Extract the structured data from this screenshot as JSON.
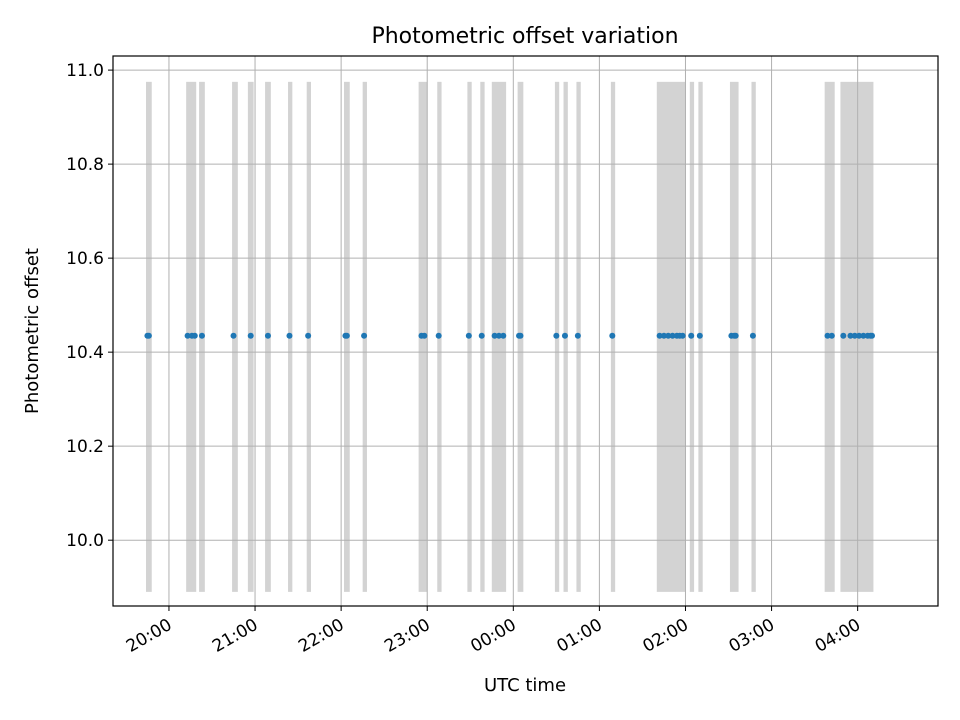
{
  "chart_data": {
    "type": "scatter",
    "title": "Photometric offset variation",
    "xlabel": "UTC time",
    "ylabel": "Photometric offset",
    "x_tick_labels": [
      "20:00",
      "21:00",
      "22:00",
      "23:00",
      "00:00",
      "01:00",
      "02:00",
      "03:00",
      "04:00"
    ],
    "y_tick_labels": [
      "10.0",
      "10.2",
      "10.4",
      "10.6",
      "10.8",
      "11.0"
    ],
    "xlim": [
      "19:21",
      "04:56"
    ],
    "ylim": [
      9.86,
      11.03
    ],
    "x_ticks": [
      "20:00",
      "21:00",
      "22:00",
      "23:00",
      "00:00",
      "01:00",
      "02:00",
      "03:00",
      "04:00"
    ],
    "y_ticks": [
      10.0,
      10.2,
      10.4,
      10.6,
      10.8,
      11.0
    ],
    "grid": true,
    "observation_window": [
      9.89,
      10.975
    ],
    "colors": {
      "points": "#1f77b4",
      "bands": "#d3d3d3",
      "grid": "#b0b0b0"
    },
    "points": [
      {
        "x": "19:45",
        "y": 10.435
      },
      {
        "x": "19:46",
        "y": 10.435
      },
      {
        "x": "20:13",
        "y": 10.435
      },
      {
        "x": "20:16",
        "y": 10.435
      },
      {
        "x": "20:18",
        "y": 10.435
      },
      {
        "x": "20:23",
        "y": 10.435
      },
      {
        "x": "20:45",
        "y": 10.435
      },
      {
        "x": "20:57",
        "y": 10.435
      },
      {
        "x": "21:09",
        "y": 10.435
      },
      {
        "x": "21:24",
        "y": 10.435
      },
      {
        "x": "21:37",
        "y": 10.435
      },
      {
        "x": "22:03",
        "y": 10.435
      },
      {
        "x": "22:04",
        "y": 10.435
      },
      {
        "x": "22:16",
        "y": 10.435
      },
      {
        "x": "22:56",
        "y": 10.435
      },
      {
        "x": "22:58",
        "y": 10.435
      },
      {
        "x": "23:08",
        "y": 10.435
      },
      {
        "x": "23:29",
        "y": 10.435
      },
      {
        "x": "23:38",
        "y": 10.435
      },
      {
        "x": "23:47",
        "y": 10.435
      },
      {
        "x": "23:50",
        "y": 10.435
      },
      {
        "x": "23:53",
        "y": 10.435
      },
      {
        "x": "00:04",
        "y": 10.435
      },
      {
        "x": "00:05",
        "y": 10.435
      },
      {
        "x": "00:30",
        "y": 10.435
      },
      {
        "x": "00:36",
        "y": 10.435
      },
      {
        "x": "00:45",
        "y": 10.435
      },
      {
        "x": "01:09",
        "y": 10.435
      },
      {
        "x": "01:42",
        "y": 10.435
      },
      {
        "x": "01:45",
        "y": 10.435
      },
      {
        "x": "01:48",
        "y": 10.435
      },
      {
        "x": "01:51",
        "y": 10.435
      },
      {
        "x": "01:54",
        "y": 10.435
      },
      {
        "x": "01:56",
        "y": 10.435
      },
      {
        "x": "01:58",
        "y": 10.435
      },
      {
        "x": "02:04",
        "y": 10.435
      },
      {
        "x": "02:10",
        "y": 10.435
      },
      {
        "x": "02:32",
        "y": 10.435
      },
      {
        "x": "02:34",
        "y": 10.435
      },
      {
        "x": "02:35",
        "y": 10.435
      },
      {
        "x": "02:47",
        "y": 10.435
      },
      {
        "x": "03:39",
        "y": 10.435
      },
      {
        "x": "03:42",
        "y": 10.435
      },
      {
        "x": "03:50",
        "y": 10.435
      },
      {
        "x": "03:55",
        "y": 10.435
      },
      {
        "x": "03:58",
        "y": 10.435
      },
      {
        "x": "04:01",
        "y": 10.435
      },
      {
        "x": "04:04",
        "y": 10.435
      },
      {
        "x": "04:07",
        "y": 10.435
      },
      {
        "x": "04:09",
        "y": 10.435
      },
      {
        "x": "04:10",
        "y": 10.435
      }
    ],
    "bands": [
      [
        "19:44",
        "19:48"
      ],
      [
        "20:12",
        "20:19"
      ],
      [
        "20:21",
        "20:25"
      ],
      [
        "20:44",
        "20:48"
      ],
      [
        "20:55",
        "20:59"
      ],
      [
        "21:07",
        "21:11"
      ],
      [
        "21:23",
        "21:26"
      ],
      [
        "21:36",
        "21:39"
      ],
      [
        "22:02",
        "22:06"
      ],
      [
        "22:15",
        "22:18"
      ],
      [
        "22:54",
        "23:00"
      ],
      [
        "23:07",
        "23:10"
      ],
      [
        "23:28",
        "23:31"
      ],
      [
        "23:37",
        "23:40"
      ],
      [
        "23:45",
        "23:55"
      ],
      [
        "00:03",
        "00:07"
      ],
      [
        "00:29",
        "00:32"
      ],
      [
        "00:35",
        "00:38"
      ],
      [
        "00:44",
        "00:47"
      ],
      [
        "01:08",
        "01:11"
      ],
      [
        "01:40",
        "02:00"
      ],
      [
        "02:03",
        "02:06"
      ],
      [
        "02:09",
        "02:12"
      ],
      [
        "02:31",
        "02:37"
      ],
      [
        "02:46",
        "02:49"
      ],
      [
        "03:37",
        "03:44"
      ],
      [
        "03:48",
        "04:11"
      ]
    ]
  }
}
